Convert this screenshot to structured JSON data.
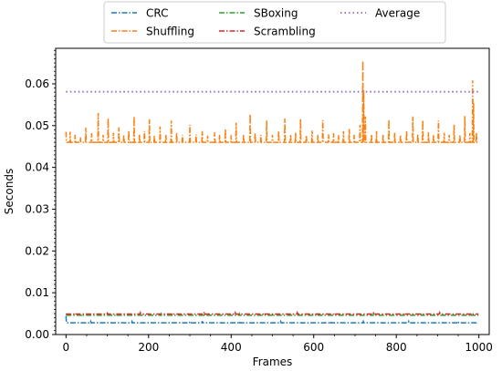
{
  "chart_data": {
    "type": "line",
    "xlabel": "Frames",
    "ylabel": "Seconds",
    "xlim": [
      -25,
      1025
    ],
    "ylim": [
      0,
      0.0685
    ],
    "xticks": [
      0,
      200,
      400,
      600,
      800,
      1000
    ],
    "yticks": [
      0.0,
      0.01,
      0.02,
      0.03,
      0.04,
      0.05,
      0.06
    ],
    "ytick_labels": [
      "0.00",
      "0.01",
      "0.02",
      "0.03",
      "0.04",
      "0.05",
      "0.06"
    ],
    "grid": false,
    "legend_position": "top-center-outside",
    "legend_columns": 3,
    "series": [
      {
        "name": "CRC",
        "color": "#1f77b4",
        "linestyle": "dashdot",
        "x_range": [
          0,
          999
        ],
        "base": 0.0028,
        "first_value": 0.0044,
        "spikes": [
          [
            60,
            0.0031
          ],
          [
            160,
            0.0031
          ],
          [
            300,
            0.0031
          ],
          [
            330,
            0.0032
          ],
          [
            420,
            0.0031
          ],
          [
            520,
            0.0031
          ],
          [
            640,
            0.0031
          ],
          [
            720,
            0.0031
          ],
          [
            830,
            0.0031
          ],
          [
            950,
            0.0031
          ]
        ]
      },
      {
        "name": "Shuffling",
        "color": "#ff7f0e",
        "linestyle": "dashdot",
        "x_range": [
          0,
          999
        ],
        "base": 0.046,
        "first_value": 0.0485,
        "spikes": [
          [
            10,
            0.0485
          ],
          [
            22,
            0.0478
          ],
          [
            35,
            0.0472
          ],
          [
            48,
            0.0495
          ],
          [
            62,
            0.0482
          ],
          [
            78,
            0.053
          ],
          [
            90,
            0.0478
          ],
          [
            102,
            0.0518
          ],
          [
            115,
            0.0483
          ],
          [
            128,
            0.0496
          ],
          [
            140,
            0.0478
          ],
          [
            152,
            0.0488
          ],
          [
            165,
            0.0522
          ],
          [
            178,
            0.0479
          ],
          [
            190,
            0.0487
          ],
          [
            202,
            0.0515
          ],
          [
            214,
            0.0476
          ],
          [
            228,
            0.0498
          ],
          [
            242,
            0.0478
          ],
          [
            255,
            0.0512
          ],
          [
            268,
            0.0483
          ],
          [
            282,
            0.0478
          ],
          [
            300,
            0.0502
          ],
          [
            315,
            0.0479
          ],
          [
            330,
            0.0487
          ],
          [
            343,
            0.0476
          ],
          [
            360,
            0.0484
          ],
          [
            372,
            0.0478
          ],
          [
            386,
            0.0492
          ],
          [
            400,
            0.0477
          ],
          [
            412,
            0.0507
          ],
          [
            430,
            0.0479
          ],
          [
            446,
            0.0528
          ],
          [
            458,
            0.0483
          ],
          [
            472,
            0.0478
          ],
          [
            486,
            0.0512
          ],
          [
            500,
            0.0478
          ],
          [
            515,
            0.0487
          ],
          [
            530,
            0.0517
          ],
          [
            544,
            0.0479
          ],
          [
            556,
            0.0483
          ],
          [
            568,
            0.0516
          ],
          [
            582,
            0.0477
          ],
          [
            596,
            0.0488
          ],
          [
            610,
            0.0478
          ],
          [
            622,
            0.0513
          ],
          [
            636,
            0.0479
          ],
          [
            648,
            0.0482
          ],
          [
            660,
            0.0477
          ],
          [
            672,
            0.0487
          ],
          [
            686,
            0.0492
          ],
          [
            698,
            0.0478
          ],
          [
            712,
            0.0502
          ],
          [
            719,
            0.0655
          ],
          [
            721,
            0.0585
          ],
          [
            725,
            0.0522
          ],
          [
            740,
            0.0479
          ],
          [
            752,
            0.0487
          ],
          [
            768,
            0.0478
          ],
          [
            782,
            0.0515
          ],
          [
            796,
            0.0483
          ],
          [
            810,
            0.0478
          ],
          [
            825,
            0.0488
          ],
          [
            840,
            0.0522
          ],
          [
            852,
            0.0479
          ],
          [
            864,
            0.0513
          ],
          [
            878,
            0.0484
          ],
          [
            890,
            0.0478
          ],
          [
            902,
            0.0512
          ],
          [
            916,
            0.0483
          ],
          [
            928,
            0.0478
          ],
          [
            940,
            0.0502
          ],
          [
            954,
            0.0478
          ],
          [
            966,
            0.0523
          ],
          [
            978,
            0.0482
          ],
          [
            985,
            0.0608
          ],
          [
            987,
            0.0555
          ],
          [
            994,
            0.0483
          ]
        ]
      },
      {
        "name": "SBoxing",
        "color": "#2ca02c",
        "linestyle": "dashdot",
        "x_range": [
          0,
          999
        ],
        "base": 0.0046,
        "first_value": 0.0046,
        "spikes": [
          [
            40,
            0.0048
          ],
          [
            120,
            0.0048
          ],
          [
            230,
            0.0049
          ],
          [
            335,
            0.005
          ],
          [
            420,
            0.0049
          ],
          [
            500,
            0.0049
          ],
          [
            610,
            0.0048
          ],
          [
            745,
            0.0049
          ],
          [
            860,
            0.0048
          ],
          [
            980,
            0.0049
          ]
        ]
      },
      {
        "name": "Scrambling",
        "color": "#d62728",
        "linestyle": "dashdot",
        "x_range": [
          0,
          999
        ],
        "base": 0.0049,
        "first_value": 0.005,
        "spikes": [
          [
            20,
            0.0051
          ],
          [
            100,
            0.0051
          ],
          [
            180,
            0.0052
          ],
          [
            260,
            0.0051
          ],
          [
            335,
            0.0054
          ],
          [
            410,
            0.0052
          ],
          [
            480,
            0.0051
          ],
          [
            560,
            0.0052
          ],
          [
            650,
            0.0051
          ],
          [
            745,
            0.0053
          ],
          [
            820,
            0.0051
          ],
          [
            905,
            0.0052
          ],
          [
            985,
            0.0051
          ]
        ]
      },
      {
        "name": "Average",
        "color": "#9467bd",
        "linestyle": "dotted",
        "x_range": [
          0,
          999
        ],
        "constant": 0.0581
      }
    ]
  }
}
